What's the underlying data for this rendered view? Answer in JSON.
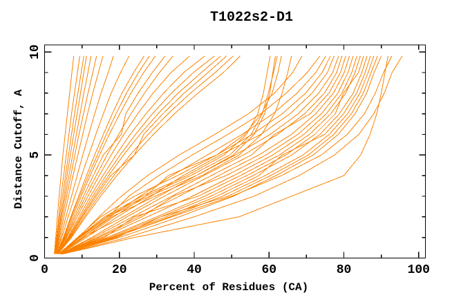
{
  "title": "T1022s2-D1",
  "chart_data": {
    "type": "line",
    "title": "T1022s2-D1",
    "xlabel": "Percent of Residues (CA)",
    "ylabel": "Distance Cutoff, A",
    "xlim": [
      0,
      101.8
    ],
    "ylim": [
      0,
      10.34
    ],
    "x_major_ticks": [
      0,
      20,
      40,
      60,
      80,
      100
    ],
    "x_minor_ticks": [
      10,
      30,
      50,
      70,
      90
    ],
    "y_major_ticks": [
      0,
      5,
      10
    ],
    "y_minor_ticks": [
      1,
      2,
      3,
      4,
      6,
      7,
      8,
      9
    ],
    "grid": false,
    "legend": "none",
    "curve_color": "#FB8200",
    "axis_color": "#000000",
    "background": "#FFFFFF",
    "cutoffs": [
      0.2,
      1,
      2,
      3,
      4,
      5,
      6,
      7,
      8,
      9,
      9.8
    ],
    "curves": [
      [
        2.6,
        3.0,
        3.4,
        3.9,
        4.4,
        4.9,
        5.5,
        6.1,
        6.7,
        7.3,
        7.8
      ],
      [
        2.7,
        3.2,
        3.8,
        4.4,
        5.1,
        5.8,
        6.5,
        7.2,
        8.0,
        8.8,
        9.4
      ],
      [
        2.7,
        3.3,
        4.0,
        4.8,
        5.6,
        6.4,
        7.2,
        8.0,
        8.9,
        9.8,
        10.5
      ],
      [
        2.8,
        3.5,
        4.3,
        5.2,
        6.0,
        6.9,
        7.8,
        8.7,
        9.6,
        10.5,
        11.2
      ],
      [
        2.8,
        3.6,
        4.5,
        5.5,
        6.5,
        7.5,
        8.5,
        9.5,
        10.5,
        11.6,
        12.4
      ],
      [
        2.9,
        3.8,
        4.8,
        5.9,
        7.0,
        8.1,
        9.2,
        10.4,
        11.6,
        12.9,
        13.9
      ],
      [
        2.9,
        4.0,
        5.2,
        6.4,
        7.6,
        8.9,
        10.2,
        11.5,
        12.9,
        14.4,
        15.6
      ],
      [
        3.0,
        4.3,
        5.7,
        7.2,
        8.7,
        10.2,
        11.8,
        13.4,
        15.1,
        17.0,
        18.4
      ],
      [
        3.0,
        4.6,
        6.3,
        8.1,
        9.9,
        11.8,
        13.7,
        15.7,
        17.8,
        20.3,
        22.6
      ],
      [
        3.1,
        5.0,
        7.0,
        9.1,
        11.2,
        13.4,
        15.7,
        18.1,
        20.7,
        23.8,
        26.6
      ],
      [
        3.1,
        5.1,
        7.2,
        9.4,
        11.7,
        14.1,
        16.5,
        19.1,
        21.9,
        25.1,
        28.0
      ],
      [
        3.2,
        5.3,
        7.5,
        9.8,
        12.2,
        14.7,
        17.3,
        20.1,
        23.1,
        26.5,
        29.6
      ],
      [
        3.2,
        5.5,
        7.9,
        10.4,
        13.0,
        15.7,
        20.5,
        21.7,
        25.0,
        28.8,
        32.2
      ],
      [
        3.3,
        5.7,
        8.3,
        11.0,
        13.8,
        16.7,
        19.8,
        23.1,
        26.7,
        30.7,
        34.3
      ],
      [
        3.3,
        5.9,
        8.7,
        11.6,
        14.6,
        17.8,
        21.2,
        24.9,
        29.0,
        33.8,
        38.8
      ],
      [
        3.4,
        6.2,
        9.2,
        12.3,
        15.6,
        19.1,
        22.9,
        27.1,
        31.8,
        37.2,
        42.8
      ],
      [
        3.4,
        6.4,
        9.6,
        12.9,
        16.4,
        20.2,
        24.3,
        28.8,
        33.9,
        39.8,
        45.4
      ],
      [
        3.5,
        6.6,
        9.9,
        13.4,
        17.1,
        21.1,
        25.5,
        30.3,
        35.7,
        41.9,
        47.1
      ],
      [
        3.5,
        6.8,
        10.2,
        13.8,
        17.7,
        24.0,
        26.5,
        31.6,
        37.3,
        43.7,
        48.6
      ],
      [
        3.6,
        7.0,
        10.6,
        14.4,
        18.5,
        22.9,
        27.7,
        33.0,
        39.0,
        45.6,
        50.4
      ],
      [
        3.6,
        7.2,
        11.0,
        15.0,
        19.3,
        24.0,
        29.1,
        34.7,
        41.0,
        47.8,
        52.3
      ],
      [
        3.7,
        9.0,
        16.0,
        26.0,
        38.0,
        48.0,
        54.0,
        57.0,
        58.5,
        59.5,
        60.3
      ],
      [
        3.7,
        9.5,
        17.0,
        28.0,
        40.5,
        50.5,
        56.0,
        58.8,
        60.2,
        61.0,
        61.7
      ],
      [
        3.9,
        9.2,
        16.5,
        27.0,
        39.0,
        49.5,
        55.2,
        58.2,
        59.8,
        61.2,
        62.2
      ],
      [
        3.8,
        8.8,
        15.0,
        24.0,
        35.5,
        46.0,
        53.5,
        58.0,
        60.8,
        62.4,
        63.3
      ],
      [
        3.8,
        10.0,
        18.0,
        29.5,
        42.0,
        52.0,
        58.0,
        61.5,
        63.5,
        65.0,
        66.0
      ],
      [
        3.9,
        9.0,
        14.5,
        20.5,
        27.5,
        36.0,
        45.5,
        54.5,
        61.5,
        66.3,
        68.8
      ],
      [
        3.9,
        9.4,
        17.0,
        22.5,
        30.5,
        39.5,
        49.0,
        57.8,
        64.6,
        70.2,
        73.6
      ],
      [
        4.0,
        10.0,
        17.5,
        25.5,
        34.0,
        43.5,
        52.8,
        61.0,
        67.5,
        72.5,
        75.2
      ],
      [
        4.0,
        10.6,
        18.5,
        27.0,
        33.0,
        46.0,
        55.5,
        63.5,
        69.8,
        74.2,
        76.4
      ],
      [
        4.1,
        11.2,
        19.5,
        28.5,
        37.0,
        47.0,
        57.8,
        65.6,
        71.5,
        75.6,
        77.4
      ],
      [
        4.1,
        10.2,
        21.0,
        30.5,
        40.5,
        51.0,
        60.3,
        67.8,
        73.3,
        77.0,
        78.6
      ],
      [
        4.2,
        12.6,
        22.0,
        32.0,
        42.5,
        53.2,
        62.3,
        69.5,
        74.8,
        78.1,
        79.5
      ],
      [
        4.2,
        13.2,
        23.5,
        34.0,
        44.5,
        55.3,
        61.5,
        71.0,
        76.0,
        79.1,
        80.5
      ],
      [
        4.3,
        14.0,
        25.0,
        36.0,
        46.5,
        57.3,
        66.0,
        72.5,
        77.2,
        80.1,
        81.5
      ],
      [
        4.3,
        14.6,
        26.0,
        34.5,
        48.5,
        59.2,
        67.7,
        74.0,
        78.4,
        81.1,
        82.5
      ],
      [
        4.4,
        15.3,
        27.5,
        39.5,
        50.5,
        61.0,
        69.3,
        75.3,
        79.5,
        82.1,
        83.5
      ],
      [
        4.4,
        16.0,
        24.0,
        41.0,
        52.3,
        62.8,
        70.8,
        76.5,
        80.5,
        83.0,
        84.4
      ],
      [
        4.5,
        16.7,
        30.0,
        42.8,
        54.0,
        64.5,
        72.2,
        77.7,
        79.9,
        83.9,
        85.3
      ],
      [
        4.5,
        17.4,
        31.0,
        44.4,
        55.7,
        66.1,
        73.6,
        78.8,
        82.5,
        84.8,
        86.2
      ],
      [
        4.6,
        18.0,
        32.5,
        46.0,
        57.3,
        63.5,
        74.9,
        79.9,
        83.4,
        85.7,
        87.1
      ],
      [
        4.6,
        18.7,
        33.5,
        47.5,
        58.9,
        69.1,
        76.1,
        81.0,
        84.3,
        86.5,
        88.0
      ],
      [
        4.7,
        19.4,
        31.0,
        49.0,
        60.4,
        70.5,
        77.3,
        82.0,
        85.2,
        87.3,
        89.0
      ],
      [
        4.7,
        20.0,
        36.0,
        50.5,
        61.8,
        71.8,
        78.5,
        83.0,
        86.1,
        88.1,
        90.0
      ],
      [
        4.8,
        18.5,
        34.0,
        50.0,
        63.3,
        74.0,
        80.9,
        85.5,
        88.4,
        90.6,
        92.8
      ],
      [
        4.9,
        22.0,
        40.0,
        56.0,
        68.0,
        77.5,
        84.0,
        88.0,
        90.8,
        92.9,
        95.6
      ],
      [
        5.0,
        24.0,
        52.0,
        66.0,
        80.0,
        84.5,
        87.0,
        88.8,
        90.0,
        91.0,
        91.8
      ]
    ]
  }
}
